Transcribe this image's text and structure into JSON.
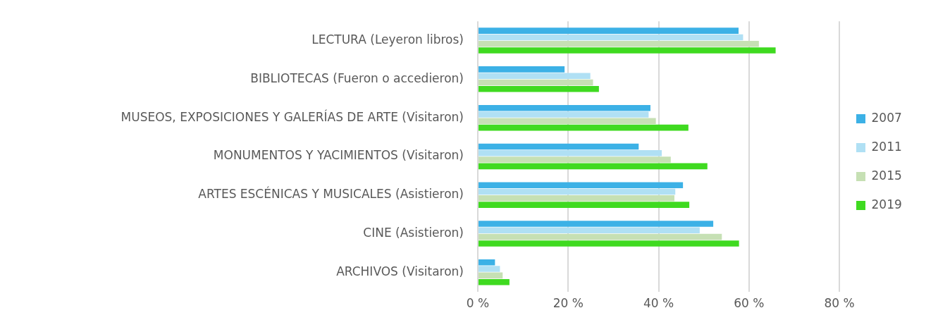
{
  "chart_data": {
    "type": "bar",
    "orientation": "horizontal",
    "categories": [
      "LECTURA (Leyeron libros)",
      "BIBLIOTECAS (Fueron o accedieron)",
      "MUSEOS, EXPOSICIONES Y GALERÍAS DE ARTE (Visitaron)",
      "MONUMENTOS Y YACIMIENTOS (Visitaron)",
      "ARTES ESCÉNICAS Y MUSICALES (Asistieron)",
      "CINE (Asistieron)",
      "ARCHIVOS (Visitaron)"
    ],
    "series": [
      {
        "name": "2007",
        "color": "#3cb1e6",
        "values": [
          57.7,
          19.2,
          38.2,
          35.6,
          45.4,
          52.1,
          3.8
        ]
      },
      {
        "name": "2011",
        "color": "#b0e0f4",
        "values": [
          58.7,
          24.9,
          37.8,
          40.7,
          43.7,
          49.1,
          4.9
        ]
      },
      {
        "name": "2015",
        "color": "#c6e0b4",
        "values": [
          62.2,
          25.5,
          39.4,
          42.7,
          43.5,
          54.0,
          5.5
        ]
      },
      {
        "name": "2019",
        "color": "#3fda20",
        "values": [
          65.9,
          26.8,
          46.6,
          50.8,
          46.8,
          57.8,
          7.0
        ]
      }
    ],
    "xlim": [
      0,
      80
    ],
    "xticks": [
      {
        "value": 0,
        "label": "0 %"
      },
      {
        "value": 20,
        "label": "20 %"
      },
      {
        "value": 40,
        "label": "40 %"
      },
      {
        "value": 60,
        "label": "60 %"
      },
      {
        "value": 80,
        "label": "80 %"
      }
    ],
    "grid": "x",
    "legend": "right"
  }
}
